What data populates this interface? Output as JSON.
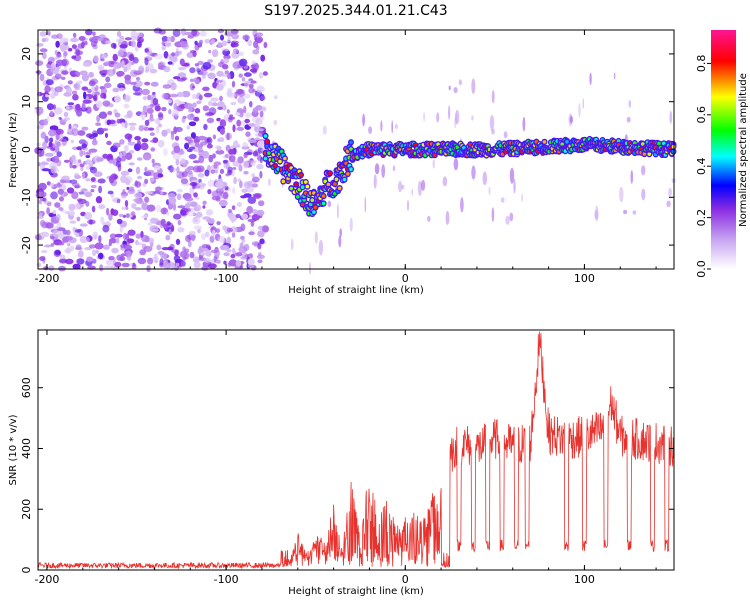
{
  "title": "S197.2025.344.01.21.C43",
  "colors": {
    "snr_line": "#e8322e",
    "axis": "#000000",
    "background": "#ffffff"
  },
  "chart_data": [
    {
      "type": "heatmap",
      "name": "spectrogram",
      "xlabel": "Height of straight line (km)",
      "ylabel": "Frequency (Hz)",
      "xlim": [
        -205,
        150
      ],
      "ylim": [
        -25,
        25
      ],
      "xticks": [
        -200,
        -100,
        0,
        100
      ],
      "xtick_labels": [
        "-200",
        "-100",
        "0",
        "100"
      ],
      "yticks": [
        -20,
        -10,
        0,
        10,
        20
      ],
      "ytick_labels": [
        "-20",
        "-10",
        "0",
        "10",
        "20"
      ],
      "colorbar": {
        "label": "Normalized spectral amplitude",
        "range": [
          0,
          0.93
        ],
        "ticks": [
          0.0,
          0.2,
          0.4,
          0.6,
          0.8
        ],
        "tick_labels": [
          "0.0",
          "0.2",
          "0.4",
          "0.6",
          "0.8"
        ],
        "colormap": [
          "#ffffff",
          "#8a2be2",
          "#0000ff",
          "#00ffff",
          "#00ff00",
          "#ffff00",
          "#ff0000",
          "#ff0080"
        ]
      },
      "features": {
        "noise_region_x": [
          -205,
          -78
        ],
        "noise_level": 0.15,
        "signal_curve": [
          [
            -78,
            0
          ],
          [
            -70,
            -3
          ],
          [
            -60,
            -7
          ],
          [
            -55,
            -10
          ],
          [
            -50,
            -12
          ],
          [
            -45,
            -8
          ],
          [
            -38,
            -6
          ],
          [
            -30,
            -1
          ],
          [
            -20,
            0
          ],
          [
            0,
            0
          ],
          [
            50,
            0
          ],
          [
            100,
            1
          ],
          [
            150,
            0
          ]
        ],
        "signal_level_min": 0.4,
        "signal_level_max": 0.9
      }
    },
    {
      "type": "line",
      "name": "snr",
      "xlabel": "Height of straight line (km)",
      "ylabel": "SNR (10 * v/v)",
      "xlim": [
        -205,
        150
      ],
      "ylim": [
        0,
        790
      ],
      "xticks": [
        -200,
        -100,
        0,
        100
      ],
      "xtick_labels": [
        "-200",
        "-100",
        "0",
        "100"
      ],
      "yticks": [
        0,
        200,
        400,
        600
      ],
      "ytick_labels": [
        "0",
        "200",
        "400",
        "600"
      ],
      "segments": [
        {
          "x": [
            -205,
            -70
          ],
          "y": [
            15,
            15
          ]
        },
        {
          "x": [
            -65,
            -60,
            -55,
            -50,
            -45,
            -40,
            -35,
            -30,
            -25,
            -20,
            -15,
            -10,
            -5,
            0,
            5,
            10,
            15,
            20
          ],
          "y": [
            20,
            90,
            40,
            100,
            70,
            160,
            60,
            220,
            80,
            260,
            120,
            180,
            110,
            130,
            150,
            120,
            180,
            200
          ]
        },
        {
          "x": [
            25,
            30,
            40,
            50,
            60,
            70,
            75,
            80,
            90,
            100,
            110,
            115,
            120,
            130,
            140,
            150
          ],
          "y": [
            380,
            420,
            400,
            430,
            410,
            420,
            760,
            450,
            430,
            440,
            460,
            550,
            440,
            430,
            420,
            410
          ]
        }
      ],
      "dropouts_x": [
        30,
        38,
        46,
        54,
        62,
        68,
        90,
        100,
        112,
        125,
        138,
        146
      ],
      "dropout_level": 60,
      "peak": {
        "x": 75,
        "y": 785
      }
    }
  ]
}
